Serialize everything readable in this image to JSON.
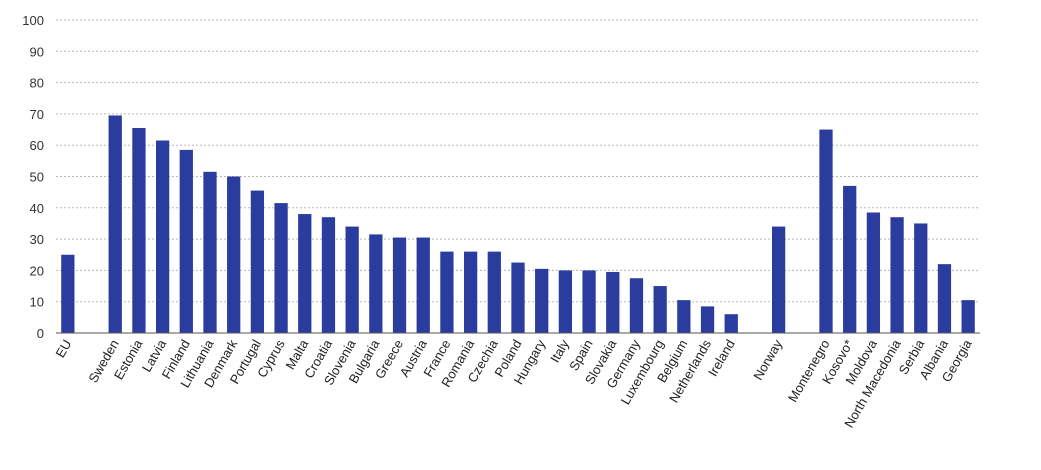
{
  "chart_data": {
    "type": "bar",
    "title": "",
    "xlabel": "",
    "ylabel": "",
    "ylim": [
      0,
      100
    ],
    "yticks": [
      0,
      10,
      20,
      30,
      40,
      50,
      60,
      70,
      80,
      90,
      100
    ],
    "grid": true,
    "bar_color": "#2a3d9e",
    "categories": [
      "EU",
      "",
      "Sweden",
      "Estonia",
      "Latvia",
      "Finland",
      "Lithuania",
      "Denmark",
      "Portugal",
      "Cyprus",
      "Malta",
      "Croatia",
      "Slovenia",
      "Bulgaria",
      "Greece",
      "Austria",
      "France",
      "Romania",
      "Czechia",
      "Poland",
      "Hungary",
      "Italy",
      "Spain",
      "Slovakia",
      "Germany",
      "Luxembourg",
      "Belgium",
      "Netherlands",
      "Ireland",
      "",
      "Norway",
      "",
      "Montenegro",
      "Kosovo*",
      "Moldova",
      "North Macedonia",
      "Serbia",
      "Albania",
      "Georgia"
    ],
    "values": [
      25,
      null,
      69.5,
      65.5,
      61.5,
      58.5,
      51.5,
      50,
      45.5,
      41.5,
      38,
      37,
      34,
      31.5,
      30.5,
      30.5,
      26,
      26,
      26,
      22.5,
      20.5,
      20,
      20,
      19.5,
      17.5,
      15,
      10.5,
      8.5,
      6,
      null,
      34,
      null,
      65,
      47,
      38.5,
      37,
      35,
      22,
      10.5
    ]
  }
}
